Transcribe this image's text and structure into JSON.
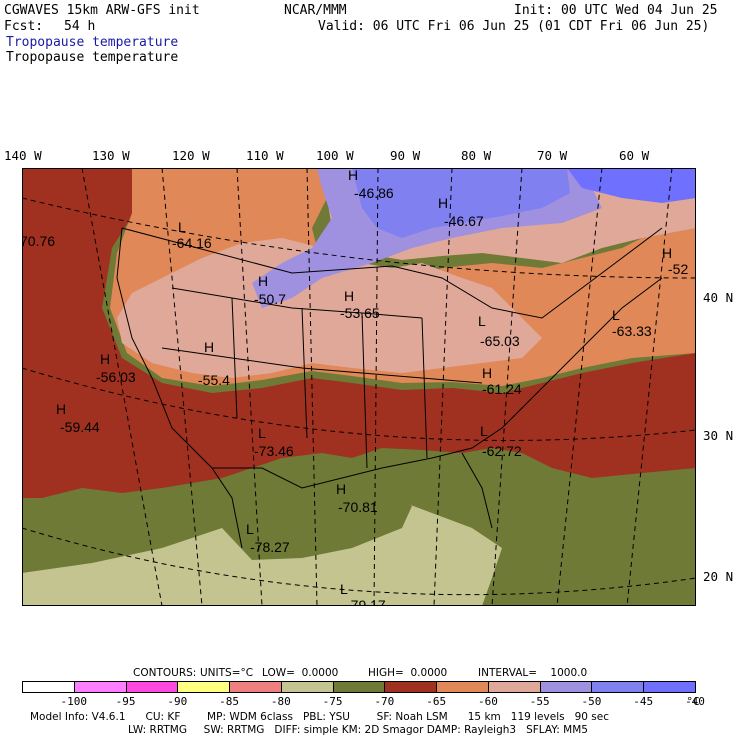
{
  "header": {
    "model": "CGWAVES 15km ARW-GFS init",
    "org": "NCAR/MMM",
    "init": "Init: 00 UTC Wed 04 Jun 25",
    "fcst_label": "Fcst:",
    "fcst_value": "54 h",
    "valid": "Valid: 06 UTC Fri 06 Jun 25 (01 CDT Fri 06 Jun 25)",
    "field_title": "Tropopause temperature",
    "field_subtitle": "Tropopause temperature",
    "title_color": "#1a1aa8"
  },
  "axes": {
    "lon_labels": [
      "140 W",
      "130 W",
      "120 W",
      "110 W",
      "100 W",
      "90 W",
      "80 W",
      "70 W",
      "60 W"
    ],
    "lat_labels": [
      "40 N",
      "30 N",
      "20 N"
    ]
  },
  "map_labels": [
    {
      "id": "h1",
      "sym": "H",
      "val": "-46.86"
    },
    {
      "id": "h2",
      "sym": "H",
      "val": "-46.67"
    },
    {
      "id": "l1",
      "sym": "L",
      "val": "-64.16"
    },
    {
      "id": "e1",
      "sym": "",
      "val": "70.76"
    },
    {
      "id": "h3",
      "sym": "H",
      "val": "-52"
    },
    {
      "id": "h4",
      "sym": "H",
      "val": "-50.7"
    },
    {
      "id": "h5",
      "sym": "H",
      "val": "-53.65"
    },
    {
      "id": "l2",
      "sym": "L",
      "val": "-63.33"
    },
    {
      "id": "l3",
      "sym": "L",
      "val": "-65.03"
    },
    {
      "id": "h6",
      "sym": "H",
      "val": "-56.03"
    },
    {
      "id": "h7",
      "sym": "H",
      "val": "-55.4"
    },
    {
      "id": "h8",
      "sym": "H",
      "val": "-61.24"
    },
    {
      "id": "h9",
      "sym": "H",
      "val": "-59.44"
    },
    {
      "id": "l4",
      "sym": "L",
      "val": "-73.46"
    },
    {
      "id": "l5",
      "sym": "L",
      "val": "-62.72"
    },
    {
      "id": "h10",
      "sym": "H",
      "val": "-70.81"
    },
    {
      "id": "l6",
      "sym": "L",
      "val": "-78.27"
    },
    {
      "id": "l7",
      "sym": "L",
      "val": "-79.17"
    }
  ],
  "contour_info": {
    "contours": "CONTOURS:",
    "units": "UNITS=°C",
    "low": "LOW=  0.0000",
    "high": "HIGH=  0.0000",
    "interval": "INTERVAL=    1000.0"
  },
  "colorbar": {
    "colors": [
      "#ffffff",
      "#ff7dff",
      "#ff48e0",
      "#ffff80",
      "#f08080",
      "#c4c490",
      "#6f7a36",
      "#a03020",
      "#e08858",
      "#e0a898",
      "#a090e0",
      "#8080f0",
      "#7070ff"
    ],
    "labels": [
      "-100",
      "-95",
      "-90",
      "-85",
      "-80",
      "-75",
      "-70",
      "-65",
      "-60",
      "-55",
      "-50",
      "-45",
      "-40"
    ],
    "unit": "°C"
  },
  "footer": {
    "line1": "Model Info: V4.6.1      CU: KF        MP: WDM 6class   PBL: YSU        SF: Noah LSM      15 km   119 levels   90 sec",
    "line2": "LW: RRTMG     SW: RRTMG   DIFF: simple KM: 2D Smagor DAMP: Rayleigh3   SFLAY: MM5"
  }
}
